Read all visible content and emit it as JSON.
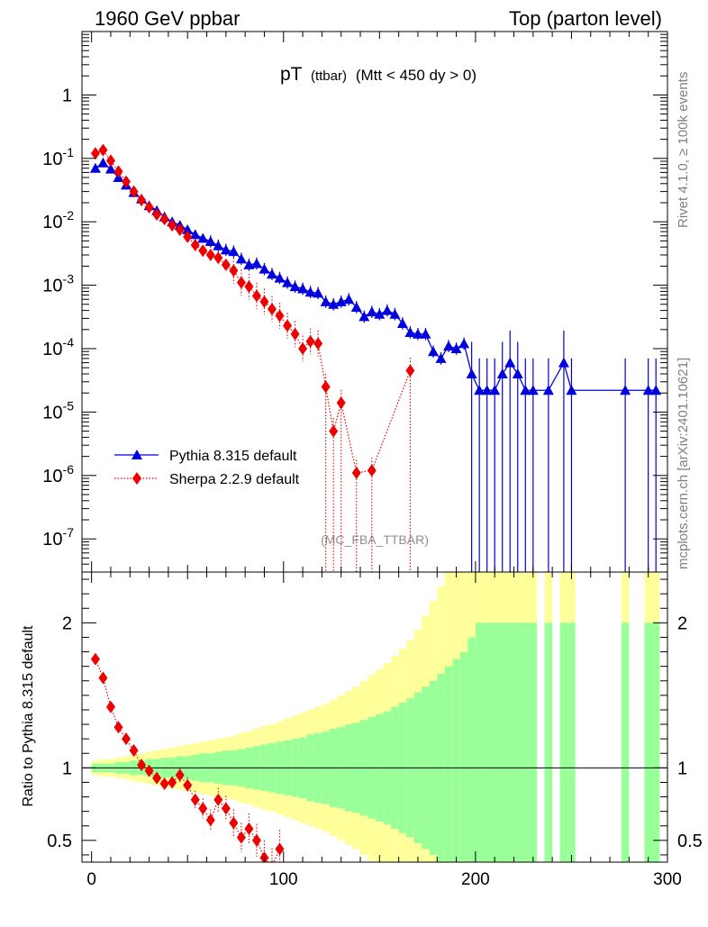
{
  "header": {
    "left": "1960 GeV ppbar",
    "right": "Top (parton level)"
  },
  "plot_title": {
    "main": "pT",
    "sub": "(ttbar)",
    "cut": "(Mtt < 450 dy > 0)"
  },
  "side_labels": {
    "rivet": "Rivet 4.1.0, ≥ 100k events",
    "mcplots": "mcplots.cern.ch [arXiv:2401.10621]"
  },
  "watermark": "(MC_FBA_TTBAR)",
  "colors": {
    "pythia": "#0000dd",
    "sherpa": "#ee0000",
    "band_outer": "#ffff99",
    "band_inner": "#99ff99"
  },
  "chart_data": [
    {
      "type": "line",
      "title": "pT (ttbar) (Mtt < 450 dy > 0)",
      "xlabel": "",
      "ylabel": "",
      "yscale": "log",
      "xlim": [
        -5,
        300
      ],
      "ylim": [
        3e-08,
        10
      ],
      "x_ticks": [
        0,
        100,
        200,
        300
      ],
      "y_ticks": [
        {
          "value": 1e-07,
          "base": "10",
          "exp": "-7"
        },
        {
          "value": 1e-06,
          "base": "10",
          "exp": "-6"
        },
        {
          "value": 1e-05,
          "base": "10",
          "exp": "-5"
        },
        {
          "value": 0.0001,
          "base": "10",
          "exp": "-4"
        },
        {
          "value": 0.001,
          "base": "10",
          "exp": "-3"
        },
        {
          "value": 0.01,
          "base": "10",
          "exp": "-2"
        },
        {
          "value": 0.1,
          "base": "10",
          "exp": "-1"
        },
        {
          "value": 1,
          "base": "1",
          "exp": ""
        }
      ],
      "legend_position": "bottom-left",
      "series": [
        {
          "name": "Pythia 8.315 default",
          "marker": "triangle",
          "line": "solid",
          "points": [
            [
              2,
              0.07
            ],
            [
              6,
              0.085
            ],
            [
              10,
              0.068
            ],
            [
              14,
              0.05
            ],
            [
              18,
              0.038
            ],
            [
              22,
              0.029
            ],
            [
              26,
              0.023
            ],
            [
              30,
              0.018
            ],
            [
              34,
              0.015
            ],
            [
              38,
              0.012
            ],
            [
              42,
              0.01
            ],
            [
              46,
              0.0088
            ],
            [
              50,
              0.0075
            ],
            [
              54,
              0.0063
            ],
            [
              58,
              0.0055
            ],
            [
              62,
              0.0049
            ],
            [
              66,
              0.0042
            ],
            [
              70,
              0.0036
            ],
            [
              74,
              0.0034
            ],
            [
              78,
              0.0026
            ],
            [
              82,
              0.0021
            ],
            [
              86,
              0.0022
            ],
            [
              90,
              0.0018
            ],
            [
              94,
              0.0015
            ],
            [
              98,
              0.0013
            ],
            [
              102,
              0.0011
            ],
            [
              106,
              0.00095
            ],
            [
              110,
              0.00088
            ],
            [
              114,
              0.00078
            ],
            [
              118,
              0.00075
            ],
            [
              122,
              0.00055
            ],
            [
              126,
              0.0005
            ],
            [
              130,
              0.00055
            ],
            [
              134,
              0.0006
            ],
            [
              138,
              0.00045
            ],
            [
              142,
              0.00032
            ],
            [
              146,
              0.00038
            ],
            [
              150,
              0.00035
            ],
            [
              154,
              0.0004
            ],
            [
              158,
              0.00035
            ],
            [
              162,
              0.00025
            ],
            [
              166,
              0.00018
            ],
            [
              170,
              0.00017
            ],
            [
              174,
              0.00017
            ],
            [
              178,
              9e-05
            ],
            [
              182,
              7e-05
            ],
            [
              186,
              0.00011
            ],
            [
              190,
              0.0001
            ],
            [
              194,
              0.00012
            ],
            [
              198,
              4e-05
            ],
            [
              202,
              2.2e-05
            ],
            [
              206,
              2.2e-05
            ],
            [
              210,
              2.2e-05
            ],
            [
              214,
              4e-05
            ],
            [
              218,
              6e-05
            ],
            [
              222,
              4e-05
            ],
            [
              226,
              2.2e-05
            ],
            [
              230,
              2.2e-05
            ],
            [
              238,
              2.2e-05
            ],
            [
              246,
              6e-05
            ],
            [
              250,
              2.2e-05
            ],
            [
              278,
              2.2e-05
            ],
            [
              290,
              2.2e-05
            ],
            [
              294,
              2.2e-05
            ]
          ]
        },
        {
          "name": "Sherpa 2.2.9 default",
          "marker": "diamond",
          "line": "dotted",
          "points": [
            [
              2,
              0.12
            ],
            [
              6,
              0.135
            ],
            [
              10,
              0.092
            ],
            [
              14,
              0.062
            ],
            [
              18,
              0.043
            ],
            [
              22,
              0.03
            ],
            [
              26,
              0.022
            ],
            [
              30,
              0.017
            ],
            [
              34,
              0.013
            ],
            [
              38,
              0.011
            ],
            [
              42,
              0.0088
            ],
            [
              46,
              0.0075
            ],
            [
              50,
              0.0058
            ],
            [
              54,
              0.0043
            ],
            [
              58,
              0.0035
            ],
            [
              62,
              0.003
            ],
            [
              66,
              0.0027
            ],
            [
              70,
              0.0021
            ],
            [
              74,
              0.0017
            ],
            [
              78,
              0.0011
            ],
            [
              82,
              0.00095
            ],
            [
              86,
              0.00068
            ],
            [
              90,
              0.00055
            ],
            [
              94,
              0.00042
            ],
            [
              98,
              0.00033
            ],
            [
              102,
              0.00023
            ],
            [
              106,
              0.00017
            ],
            [
              110,
              0.0001
            ],
            [
              114,
              0.00013
            ],
            [
              118,
              0.00012
            ],
            [
              122,
              2.5e-05
            ],
            [
              126,
              5e-06
            ],
            [
              130,
              1.4e-05
            ],
            [
              138,
              1.1e-06
            ],
            [
              146,
              1.2e-06
            ],
            [
              166,
              4.5e-05
            ]
          ]
        }
      ]
    },
    {
      "type": "area",
      "title": "",
      "xlabel": "",
      "ylabel": "Ratio to Pythia 8.315 default",
      "xlim": [
        -5,
        300
      ],
      "ylim": [
        0.35,
        2.35
      ],
      "y_ticks": [
        0.5,
        1,
        2
      ],
      "y_tick_labels": [
        "0.5",
        "1",
        "2"
      ],
      "x_ticks": [
        0,
        100,
        200,
        300
      ],
      "x_tick_labels": [
        "0",
        "100",
        "200",
        "300"
      ],
      "bands": {
        "bin_edges": [
          0,
          4,
          8,
          12,
          16,
          20,
          24,
          28,
          32,
          36,
          40,
          44,
          48,
          52,
          56,
          60,
          64,
          68,
          72,
          76,
          80,
          84,
          88,
          92,
          96,
          100,
          104,
          108,
          112,
          116,
          120,
          124,
          128,
          132,
          136,
          140,
          144,
          148,
          152,
          156,
          160,
          164,
          168,
          172,
          176,
          180,
          184,
          188,
          192,
          196,
          200,
          204,
          208,
          212,
          216,
          220,
          224,
          228,
          232,
          236,
          240,
          244,
          248,
          252
        ],
        "inner": [
          0.03,
          0.03,
          0.03,
          0.04,
          0.04,
          0.05,
          0.05,
          0.06,
          0.06,
          0.07,
          0.07,
          0.08,
          0.08,
          0.09,
          0.1,
          0.1,
          0.11,
          0.12,
          0.12,
          0.13,
          0.14,
          0.15,
          0.16,
          0.17,
          0.18,
          0.19,
          0.2,
          0.21,
          0.23,
          0.24,
          0.25,
          0.27,
          0.28,
          0.3,
          0.31,
          0.33,
          0.35,
          0.37,
          0.39,
          0.42,
          0.45,
          0.48,
          0.52,
          0.56,
          0.6,
          0.65,
          0.7,
          0.75,
          0.8,
          0.9,
          1.0,
          1.0,
          1.0,
          1.0,
          1.0,
          1.0,
          1.0,
          1.0,
          1.0,
          1.0,
          1.0,
          1.0,
          1.0
        ],
        "outer": [
          0.05,
          0.06,
          0.06,
          0.07,
          0.08,
          0.09,
          0.1,
          0.11,
          0.12,
          0.13,
          0.14,
          0.15,
          0.16,
          0.17,
          0.18,
          0.19,
          0.2,
          0.21,
          0.22,
          0.24,
          0.25,
          0.27,
          0.29,
          0.3,
          0.32,
          0.34,
          0.36,
          0.38,
          0.4,
          0.42,
          0.44,
          0.47,
          0.5,
          0.53,
          0.56,
          0.6,
          0.64,
          0.68,
          0.72,
          0.77,
          0.82,
          0.88,
          0.95,
          1.05,
          1.15,
          1.25,
          1.35,
          1.35,
          1.35,
          1.35,
          1.35,
          1.35,
          1.35,
          1.35,
          1.35,
          1.35,
          1.35,
          1.35,
          1.35,
          1.35,
          1.35,
          1.35,
          1.35
        ],
        "gaps": [
          [
            232,
            236
          ],
          [
            240,
            244
          ]
        ],
        "extra_bins": [
          [
            276,
            280
          ],
          [
            288,
            296
          ]
        ]
      },
      "series": [
        {
          "name": "Sherpa 2.2.9 default / Pythia 8.315 default",
          "marker": "diamond",
          "line": "dotted",
          "points": [
            [
              2,
              1.75
            ],
            [
              6,
              1.62
            ],
            [
              10,
              1.42
            ],
            [
              14,
              1.28
            ],
            [
              18,
              1.2
            ],
            [
              22,
              1.12
            ],
            [
              26,
              1.02
            ],
            [
              30,
              0.98
            ],
            [
              34,
              0.93
            ],
            [
              38,
              0.89
            ],
            [
              42,
              0.9
            ],
            [
              46,
              0.95
            ],
            [
              50,
              0.88
            ],
            [
              54,
              0.78
            ],
            [
              58,
              0.72
            ],
            [
              62,
              0.64
            ],
            [
              66,
              0.78
            ],
            [
              70,
              0.72
            ],
            [
              74,
              0.62
            ],
            [
              78,
              0.52
            ],
            [
              82,
              0.58
            ],
            [
              86,
              0.5
            ],
            [
              90,
              0.38
            ],
            [
              94,
              0.32
            ],
            [
              98,
              0.44
            ]
          ]
        }
      ]
    }
  ]
}
